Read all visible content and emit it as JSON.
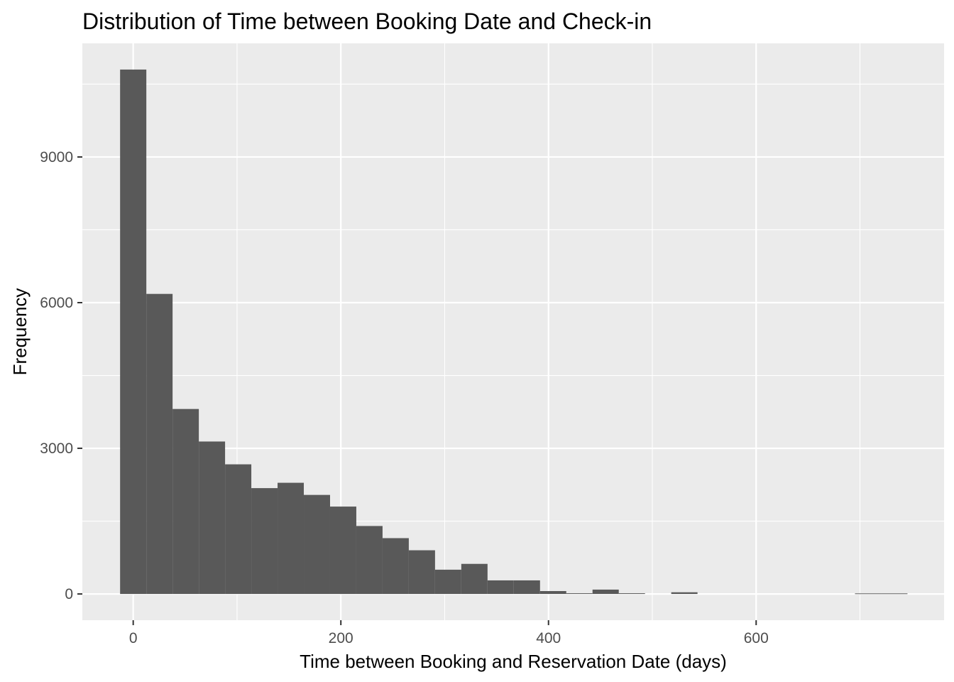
{
  "chart_data": {
    "type": "bar",
    "title": "Distribution of Time between Booking Date and Check-in",
    "xlabel": "Time between Booking and Reservation Date (days)",
    "ylabel": "Frequency",
    "x_ticks": [
      0,
      200,
      400,
      600
    ],
    "y_ticks": [
      0,
      3000,
      6000,
      9000
    ],
    "xlim": [
      -49,
      781
    ],
    "ylim": [
      -540,
      11340
    ],
    "bin_width": 25.28,
    "grid": true,
    "legend": "none",
    "bar_color": "#595959",
    "panel_color": "#ebebeb",
    "bins": [
      {
        "x": 0,
        "count": 10800
      },
      {
        "x": 25.28,
        "count": 6180
      },
      {
        "x": 50.56,
        "count": 3810
      },
      {
        "x": 75.84,
        "count": 3140
      },
      {
        "x": 101.12,
        "count": 2670
      },
      {
        "x": 126.4,
        "count": 2180
      },
      {
        "x": 151.68,
        "count": 2290
      },
      {
        "x": 176.96,
        "count": 2040
      },
      {
        "x": 202.24,
        "count": 1800
      },
      {
        "x": 227.52,
        "count": 1400
      },
      {
        "x": 252.8,
        "count": 1150
      },
      {
        "x": 278.08,
        "count": 900
      },
      {
        "x": 303.36,
        "count": 500
      },
      {
        "x": 328.64,
        "count": 620
      },
      {
        "x": 353.92,
        "count": 280
      },
      {
        "x": 379.2,
        "count": 280
      },
      {
        "x": 404.48,
        "count": 60
      },
      {
        "x": 429.76,
        "count": 15
      },
      {
        "x": 455.04,
        "count": 90
      },
      {
        "x": 480.32,
        "count": 15
      },
      {
        "x": 505.6,
        "count": 0
      },
      {
        "x": 530.88,
        "count": 35
      },
      {
        "x": 556.16,
        "count": 0
      },
      {
        "x": 581.44,
        "count": 0
      },
      {
        "x": 606.72,
        "count": 0
      },
      {
        "x": 632,
        "count": 0
      },
      {
        "x": 657.28,
        "count": 0
      },
      {
        "x": 682.56,
        "count": 0
      },
      {
        "x": 707.84,
        "count": 12
      },
      {
        "x": 733.12,
        "count": 12
      }
    ]
  }
}
